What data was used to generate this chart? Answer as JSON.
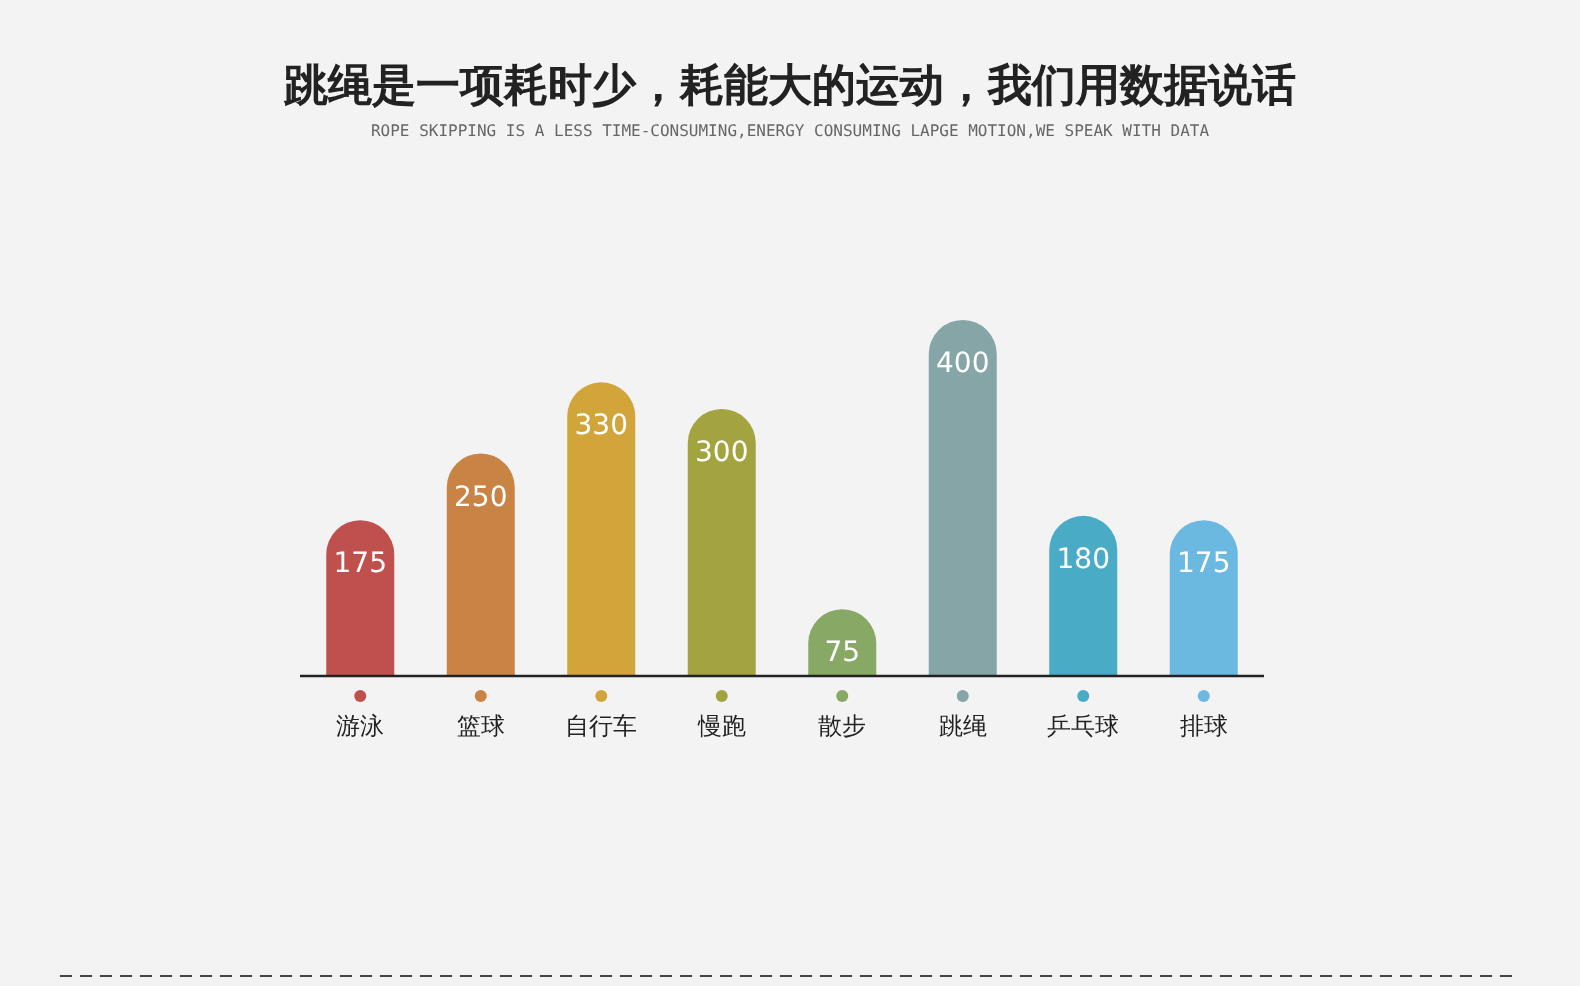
{
  "chart_data": {
    "type": "bar",
    "title": "跳绳是一项耗时少，耗能大的运动，我们用数据说话",
    "subtitle": "ROPE SKIPPING IS A LESS TIME-CONSUMING,ENERGY CONSUMING LAPGE MOTION,WE SPEAK WITH DATA",
    "categories": [
      "游泳",
      "篮球",
      "自行车",
      "慢跑",
      "散步",
      "跳绳",
      "乒乓球",
      "排球"
    ],
    "values": [
      175,
      250,
      330,
      300,
      75,
      400,
      180,
      175
    ],
    "colors": [
      "#c0504d",
      "#c98445",
      "#d2a53a",
      "#a3a340",
      "#88a866",
      "#86a5a7",
      "#4aabc6",
      "#6bb9e1"
    ],
    "data_labels": true
  }
}
